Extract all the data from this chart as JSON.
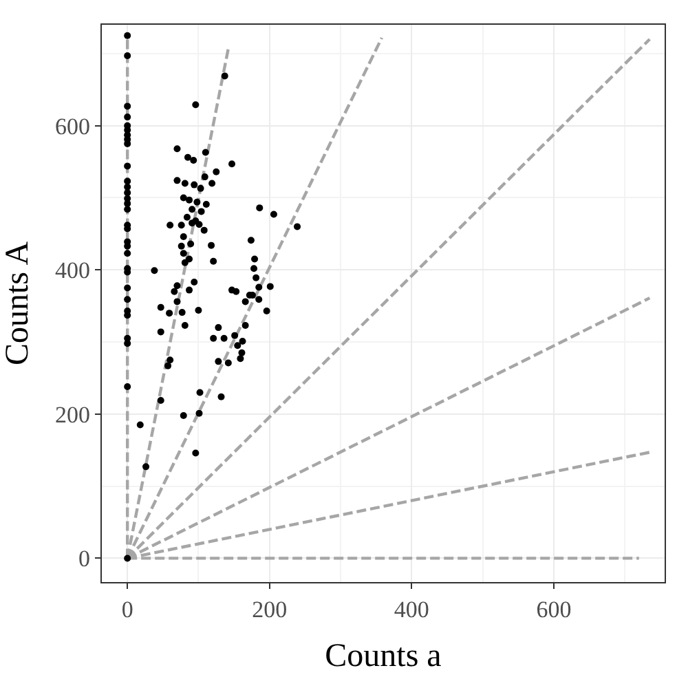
{
  "chart_data": {
    "type": "scatter",
    "xlabel": "Counts a",
    "ylabel": "Counts A",
    "xlim": [
      -36,
      756
    ],
    "ylim": [
      -33,
      740
    ],
    "xticks": [
      0,
      200,
      400,
      600
    ],
    "yticks": [
      0,
      200,
      400,
      600
    ],
    "grid": true,
    "series": [
      {
        "type": "line",
        "line_style": "dashed",
        "marker": "none",
        "color": "#a6a6a6",
        "x": [
          0,
          0
        ],
        "values": [
          0,
          720
        ]
      },
      {
        "type": "line",
        "line_style": "dashed",
        "marker": "none",
        "color": "#a6a6a6",
        "x": [
          0,
          142
        ],
        "values": [
          0,
          707
        ]
      },
      {
        "type": "line",
        "line_style": "dashed",
        "marker": "none",
        "color": "#a6a6a6",
        "x": [
          0,
          358
        ],
        "values": [
          0,
          722
        ]
      },
      {
        "type": "line",
        "line_style": "dashed",
        "marker": "none",
        "color": "#a6a6a6",
        "x": [
          0,
          735
        ],
        "values": [
          0,
          720
        ]
      },
      {
        "type": "line",
        "line_style": "dashed",
        "marker": "none",
        "color": "#a6a6a6",
        "x": [
          0,
          735
        ],
        "values": [
          0,
          361
        ]
      },
      {
        "type": "line",
        "line_style": "dashed",
        "marker": "none",
        "color": "#a6a6a6",
        "x": [
          0,
          735
        ],
        "values": [
          0,
          147
        ]
      },
      {
        "type": "line",
        "line_style": "dashed",
        "marker": "none",
        "color": "#a6a6a6",
        "x": [
          0,
          720
        ],
        "values": [
          0,
          0
        ]
      },
      {
        "marker": "circle",
        "color": "#000000",
        "x": [
          0,
          0,
          0,
          0,
          0,
          0,
          0,
          0,
          0,
          0,
          0,
          0,
          0,
          0,
          0,
          0,
          0,
          0,
          0,
          0,
          0,
          0,
          0,
          0,
          0,
          0,
          0,
          0,
          0,
          0,
          0,
          70,
          85,
          93,
          110,
          147,
          125,
          109,
          119,
          70,
          81,
          94,
          103,
          79,
          87,
          98,
          111,
          91,
          104,
          84,
          96,
          60,
          76,
          91,
          101,
          108,
          79,
          89,
          76,
          118,
          79,
          87,
          81,
          121,
          38,
          186,
          206,
          239,
          174,
          179,
          178,
          181,
          185,
          201,
          147,
          153,
          172,
          166,
          185,
          70,
          66,
          87,
          70,
          94,
          96,
          137,
          47,
          59,
          77,
          100,
          81,
          47,
          128,
          121,
          136,
          151,
          162,
          155,
          161,
          159,
          128,
          142,
          166,
          176,
          196,
          60,
          57,
          102,
          132,
          47,
          79,
          101,
          18,
          96,
          26
        ],
        "values": [
          725,
          697,
          627,
          612,
          600,
          594,
          587,
          581,
          575,
          544,
          523,
          515,
          507,
          499,
          492,
          484,
          462,
          457,
          439,
          433,
          423,
          402,
          397,
          375,
          359,
          343,
          337,
          305,
          298,
          238,
          0,
          568,
          556,
          552,
          563,
          547,
          536,
          529,
          520,
          524,
          520,
          518,
          513,
          500,
          497,
          494,
          491,
          484,
          481,
          473,
          468,
          462,
          462,
          465,
          463,
          455,
          446,
          436,
          433,
          434,
          423,
          415,
          410,
          412,
          399,
          486,
          477,
          460,
          441,
          415,
          402,
          389,
          376,
          377,
          372,
          370,
          365,
          356,
          359,
          378,
          370,
          372,
          356,
          383,
          629,
          669,
          348,
          340,
          341,
          344,
          323,
          314,
          320,
          305,
          305,
          309,
          301,
          295,
          285,
          277,
          273,
          271,
          323,
          365,
          343,
          275,
          267,
          230,
          224,
          219,
          198,
          201,
          185,
          146,
          127
        ]
      }
    ]
  }
}
